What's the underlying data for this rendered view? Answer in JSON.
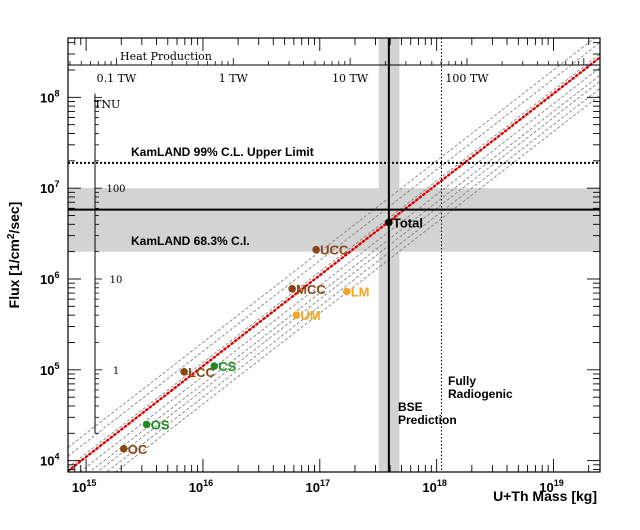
{
  "chart_data": {
    "type": "scatter",
    "xlabel": "U+Th Mass [kg]",
    "ylabel_main": "Flux [1/cm",
    "ylabel_sup": "2",
    "ylabel_tail": "/sec]",
    "x_scale": "log",
    "y_scale": "log",
    "xlim": [
      700000000000000.0,
      2.5e+19
    ],
    "ylim": [
      7500,
      450000000.0
    ],
    "x_ticks": [
      {
        "value": 1000000000000000.0,
        "base": "10",
        "exp": "15"
      },
      {
        "value": 1e+16,
        "base": "10",
        "exp": "16"
      },
      {
        "value": 1e+17,
        "base": "10",
        "exp": "17"
      },
      {
        "value": 1e+18,
        "base": "10",
        "exp": "18"
      },
      {
        "value": 1e+19,
        "base": "10",
        "exp": "19"
      }
    ],
    "y_ticks": [
      {
        "value": 10000.0,
        "base": "10",
        "exp": "4"
      },
      {
        "value": 100000.0,
        "base": "10",
        "exp": "5"
      },
      {
        "value": 1000000.0,
        "base": "10",
        "exp": "6"
      },
      {
        "value": 10000000.0,
        "base": "10",
        "exp": "7"
      },
      {
        "value": 100000000.0,
        "base": "10",
        "exp": "8"
      }
    ],
    "heat_axis": {
      "title": "Heat Production",
      "tw_per_kg": 5.5e-17,
      "ticks": [
        {
          "value_tw": 0.1,
          "label": "0.1 TW"
        },
        {
          "value_tw": 1,
          "label": "1 TW"
        },
        {
          "value_tw": 10,
          "label": "10 TW"
        },
        {
          "value_tw": 100,
          "label": "100 TW"
        }
      ]
    },
    "tnu_axis": {
      "title": "TNU",
      "flux_per_tnu": 100000,
      "range_tnu": [
        0.2,
        1100
      ],
      "ticks": [
        {
          "value_tnu": 1,
          "label": "1"
        },
        {
          "value_tnu": 10,
          "label": "10"
        },
        {
          "value_tnu": 100,
          "label": "100"
        }
      ]
    },
    "points": [
      {
        "label": "OC",
        "x": 2100000000000000.0,
        "y": 13500,
        "color": "#8B4513",
        "label_color": "#8B4513"
      },
      {
        "label": "OS",
        "x": 3300000000000000.0,
        "y": 25000,
        "color": "#1E8B1E",
        "label_color": "#1E8B1E"
      },
      {
        "label": "LCC",
        "x": 6900000000000000.0,
        "y": 95000,
        "color": "#8B4513",
        "label_color": "#8B4513"
      },
      {
        "label": "CS",
        "x": 1.25e+16,
        "y": 110000,
        "color": "#1E8B1E",
        "label_color": "#1E8B1E"
      },
      {
        "label": "MCC",
        "x": 5.8e+16,
        "y": 780000,
        "color": "#8B4513",
        "label_color": "#8B4513"
      },
      {
        "label": "UM",
        "x": 6.3e+16,
        "y": 400000,
        "color": "#F5A623",
        "label_color": "#F5A623"
      },
      {
        "label": "UCC",
        "x": 9.3e+16,
        "y": 2100000,
        "color": "#8B4513",
        "label_color": "#8B4513"
      },
      {
        "label": "LM",
        "x": 1.7e+17,
        "y": 730000,
        "color": "#F5A623",
        "label_color": "#F5A623"
      },
      {
        "label": "Total",
        "x": 3.9e+17,
        "y": 4200000,
        "color": "#000000",
        "label_color": "#000000"
      }
    ],
    "bands": {
      "kamland_68": {
        "label": "KamLAND 68.3% C.I.",
        "y_low": 2000000,
        "y_high": 10000000,
        "y_central": 5800000,
        "color": "#d3d3d3"
      },
      "kamland_99_upper": {
        "label": "KamLAND 99% C.L. Upper Limit",
        "y": 19000000
      },
      "bse": {
        "label_line1": "BSE",
        "label_line2": "Prediction",
        "x_low": 3.2e+17,
        "x_high": 4.8e+17,
        "x_central": 3.9e+17,
        "color": "#d3d3d3"
      },
      "fully_radiogenic": {
        "label_line1": "Fully",
        "label_line2": "Radiogenic",
        "x": 1.1e+18
      }
    },
    "fit_line": {
      "color": "#e00000",
      "style": "dotted",
      "slope": 1,
      "through": {
        "x": 1e+16,
        "y": 110000
      }
    },
    "grey_lines": {
      "color": "#777777",
      "style": "dashed",
      "slope": 1,
      "y_at_1e16": [
        200000,
        160000,
        120000,
        85000,
        70000,
        60000,
        50000,
        42000
      ]
    }
  }
}
